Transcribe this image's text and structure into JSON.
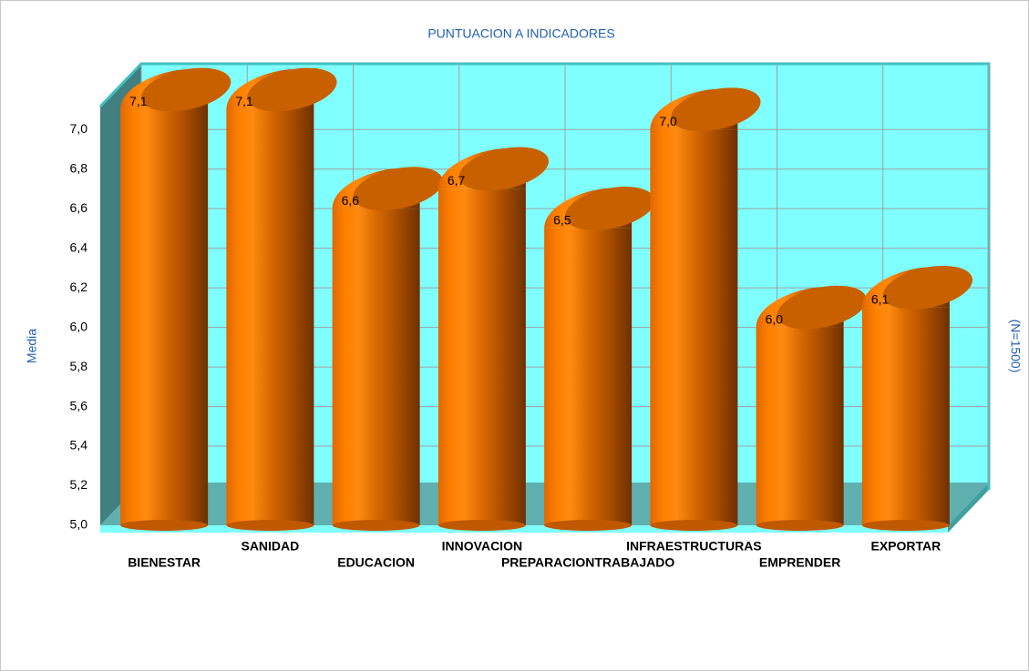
{
  "chart_data": {
    "type": "bar",
    "title": "PUNTUACION A INDICADORES",
    "y_label": "Media",
    "y2_label": "(N=1500)",
    "categories": [
      "BIENESTAR",
      "SANIDAD",
      "EDUCACION",
      "INNOVACION",
      "PREPARACIONTRABAJADO",
      "INFRAESTRUCTURAS",
      "EMPRENDER",
      "EXPORTAR"
    ],
    "values": [
      7.1,
      7.1,
      6.6,
      6.7,
      6.5,
      7.0,
      6.0,
      6.1
    ],
    "value_labels": [
      "7,1",
      "7,1",
      "6,6",
      "6,7",
      "6,5",
      "7,0",
      "6,0",
      "6,1"
    ],
    "color": "#ff8000",
    "ylim": [
      5,
      7.3
    ],
    "yticks": [
      {
        "value": 5.0,
        "label": "5,0"
      },
      {
        "value": 5.2,
        "label": "5,2"
      },
      {
        "value": 5.4,
        "label": "5,4"
      },
      {
        "value": 5.6,
        "label": "5,6"
      },
      {
        "value": 5.8,
        "label": "5,8"
      },
      {
        "value": 6.0,
        "label": "6,0"
      },
      {
        "value": 6.2,
        "label": "6,2"
      },
      {
        "value": 6.4,
        "label": "6,4"
      },
      {
        "value": 6.6,
        "label": "6,6"
      },
      {
        "value": 6.8,
        "label": "6,8"
      },
      {
        "value": 7.0,
        "label": "7,0"
      }
    ],
    "grid": true
  }
}
